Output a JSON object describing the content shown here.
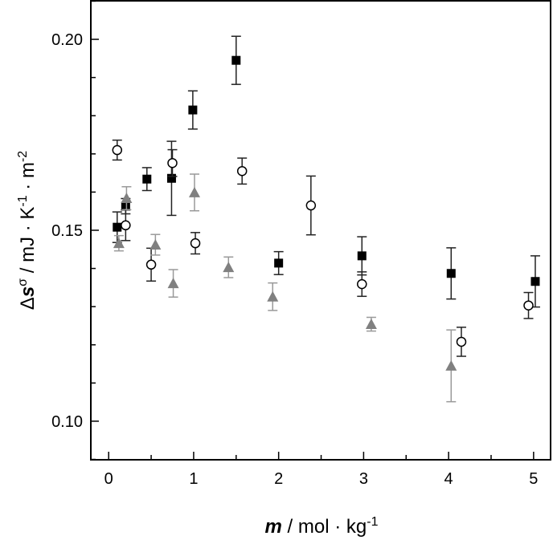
{
  "chart_data": {
    "type": "scatter",
    "xlabel": {
      "sym": "m",
      "rest": " / mol · kg",
      "sup": "-1"
    },
    "ylabel": {
      "pre": "Δ",
      "sym": "s",
      "symsup": "σ",
      "rest": " / mJ · K",
      "sup1": "-1",
      "mid": " · m",
      "sup2": "-2"
    },
    "xlim": [
      -0.21,
      5.2
    ],
    "ylim": [
      0.0899,
      0.2103
    ],
    "xticks": [
      "0",
      "1",
      "2",
      "3",
      "4",
      "5"
    ],
    "yticks": [
      "0.10",
      "0.15",
      "0.20"
    ],
    "series": [
      {
        "name": "filled squares",
        "marker": "square",
        "color": "#000000",
        "x": [
          0.1,
          0.2,
          0.45,
          0.74,
          0.99,
          1.5,
          2.0,
          2.98,
          4.03,
          5.02
        ],
        "y": [
          0.1508,
          0.1563,
          0.1634,
          0.1636,
          0.1815,
          0.1945,
          0.1414,
          0.1433,
          0.1387,
          0.1366
        ],
        "err": [
          0.004,
          0.002,
          0.003,
          0.0097,
          0.005,
          0.0063,
          0.003,
          0.005,
          0.0067,
          0.0067
        ]
      },
      {
        "name": "open circles",
        "marker": "circle",
        "color": "#000000",
        "x": [
          0.1,
          0.2,
          0.5,
          0.75,
          1.02,
          1.57,
          2.38,
          2.98,
          4.15,
          4.94
        ],
        "y": [
          0.171,
          0.1513,
          0.141,
          0.1676,
          0.1466,
          0.1655,
          0.1565,
          0.1359,
          0.1208,
          0.1303
        ],
        "err": [
          0.0026,
          0.004,
          0.0043,
          0.0035,
          0.0028,
          0.0034,
          0.0077,
          0.0032,
          0.0038,
          0.0034
        ]
      },
      {
        "name": "gray triangles",
        "marker": "triangle",
        "color": "#808080",
        "x": [
          0.12,
          0.21,
          0.55,
          0.76,
          1.01,
          1.41,
          1.93,
          3.09,
          4.03
        ],
        "y": [
          0.1466,
          0.1584,
          0.1462,
          0.1361,
          0.1599,
          0.1403,
          0.1326,
          0.1254,
          0.1145
        ],
        "err": [
          0.002,
          0.003,
          0.0027,
          0.0036,
          0.0048,
          0.0027,
          0.0036,
          0.0018,
          0.0094
        ]
      }
    ]
  }
}
